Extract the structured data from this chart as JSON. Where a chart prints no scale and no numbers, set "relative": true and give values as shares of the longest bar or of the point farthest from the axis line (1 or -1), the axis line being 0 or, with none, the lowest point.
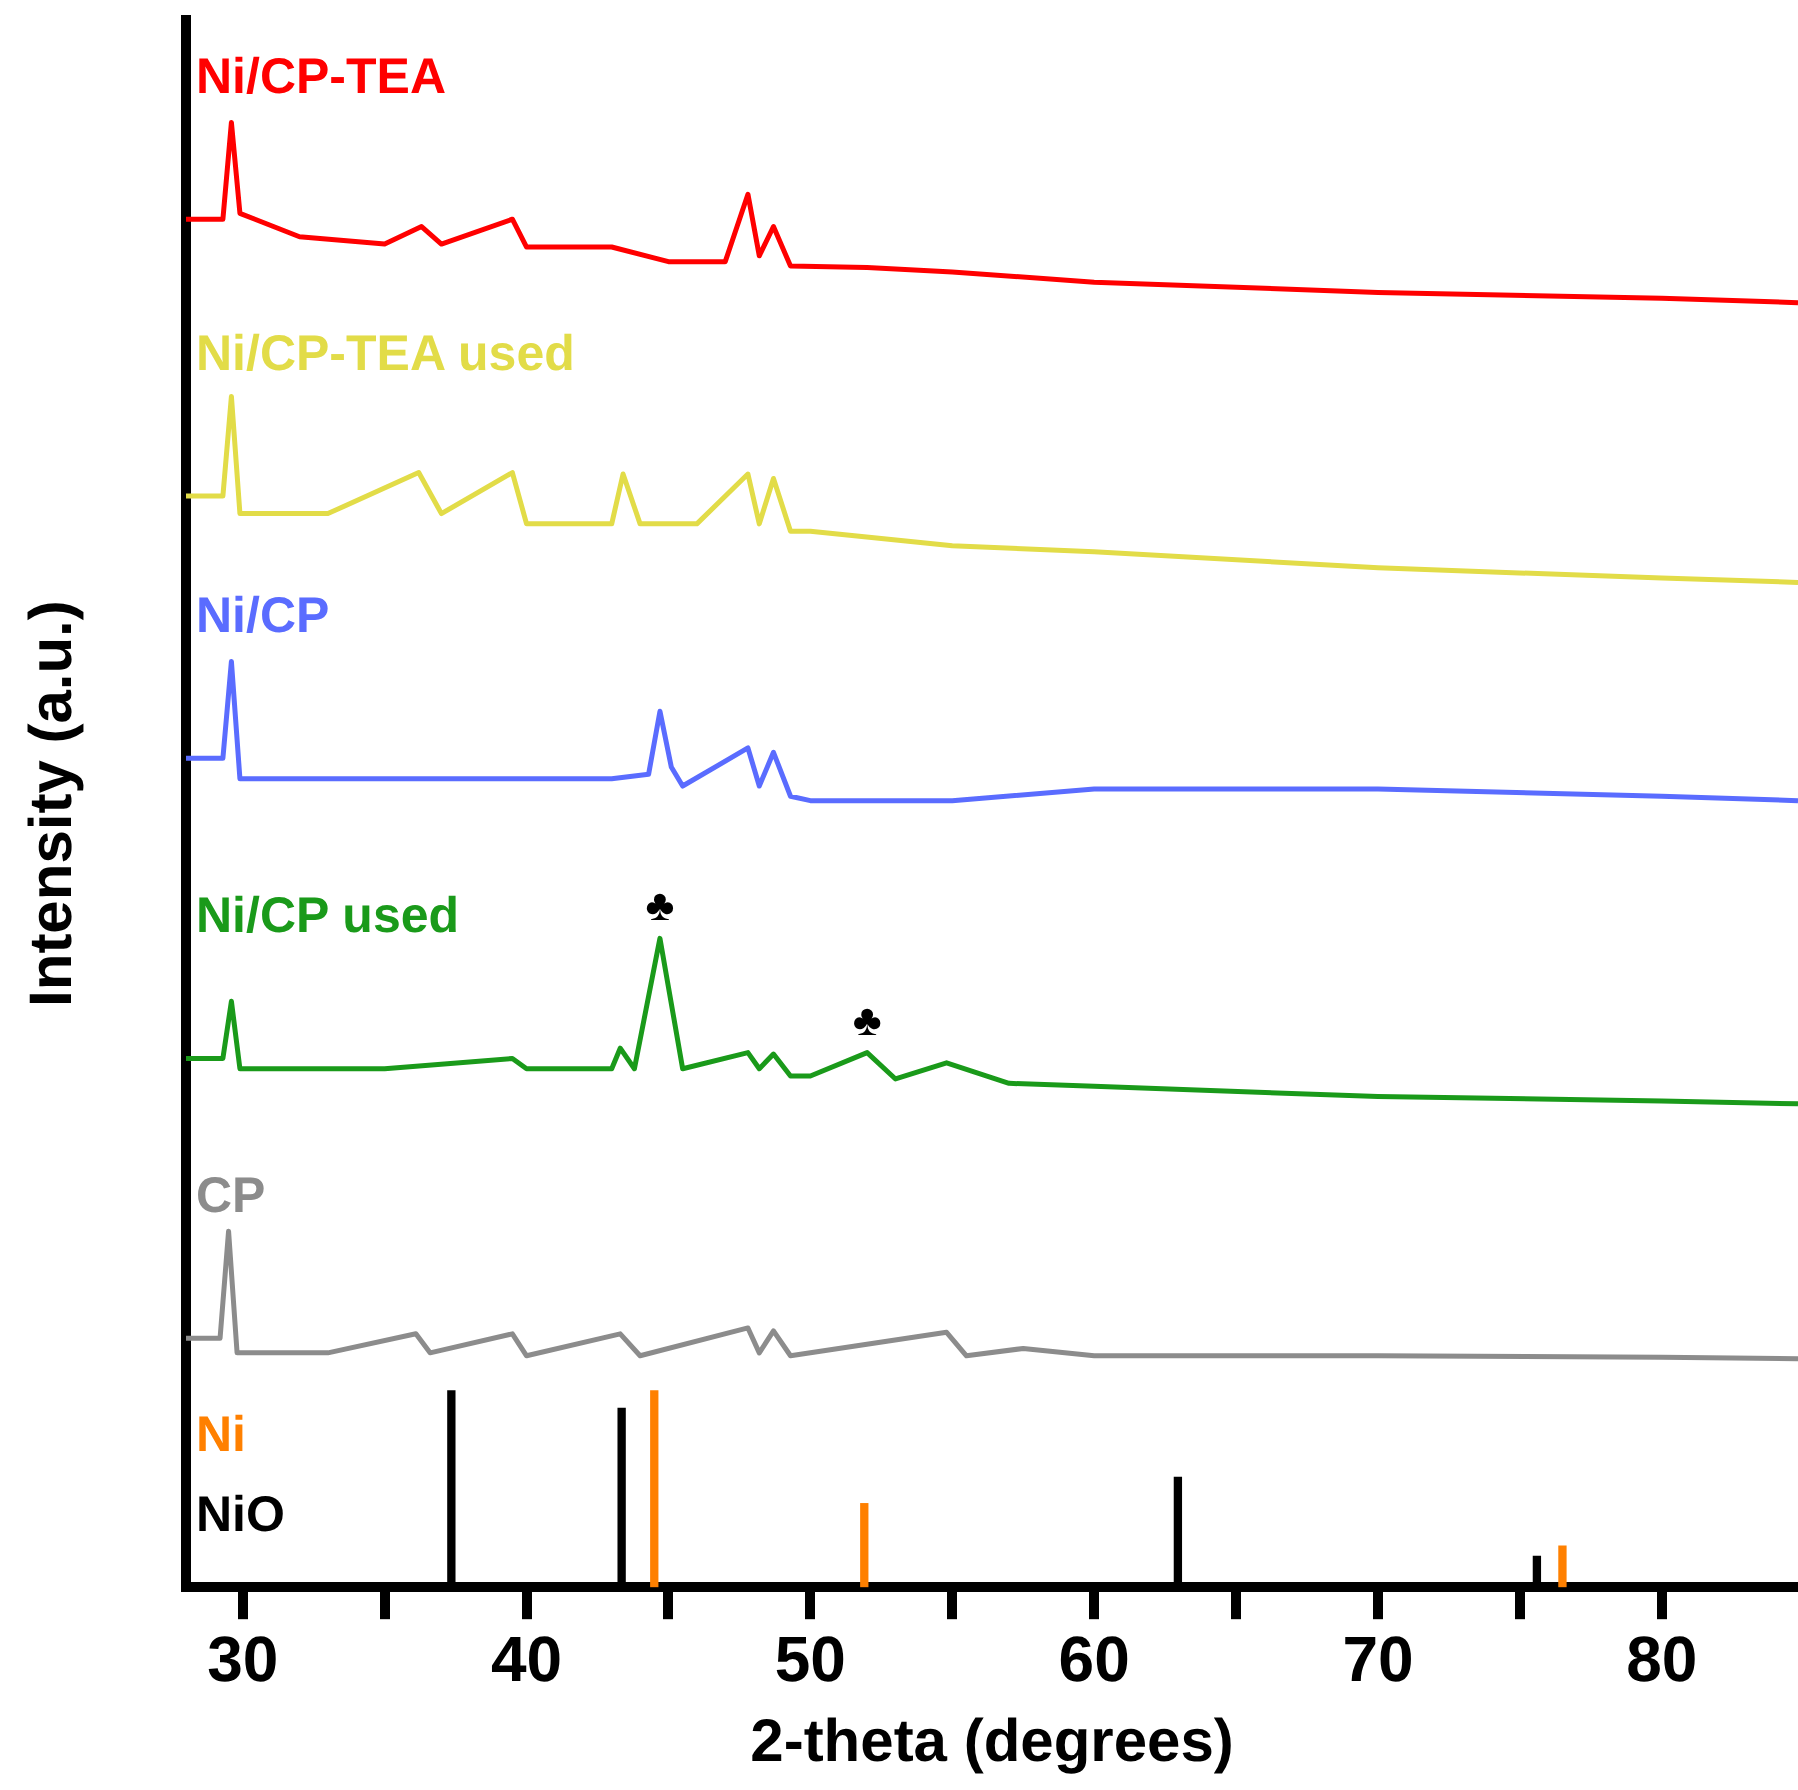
{
  "chart_data": {
    "type": "line",
    "relative": true,
    "xlabel": "2-theta (degrees)",
    "ylabel": "Intensity (a.u.)",
    "xlim": [
      28,
      84.8
    ],
    "xticks": [
      30,
      {
        "value": 35,
        "label": null
      },
      40,
      {
        "value": 45,
        "label": null
      },
      50,
      {
        "value": 55,
        "label": null
      },
      60,
      {
        "value": 65,
        "label": null
      },
      70,
      {
        "value": 75,
        "label": null
      },
      80
    ],
    "legend": false,
    "grid": false,
    "marker": "none",
    "series": [
      {
        "name": "Ni/CP-TEA",
        "color": "#ff0000",
        "x": [
          28,
          29.3,
          29.6,
          29.9,
          32,
          35,
          36.3,
          37,
          39.5,
          40,
          43,
          45,
          47,
          47.8,
          48.2,
          48.7,
          49.3,
          52,
          55,
          60,
          70,
          80,
          84.8
        ],
        "values": [
          0.934,
          0.934,
          1.0,
          0.938,
          0.922,
          0.917,
          0.929,
          0.917,
          0.934,
          0.915,
          0.915,
          0.905,
          0.905,
          0.951,
          0.909,
          0.929,
          0.902,
          0.901,
          0.898,
          0.891,
          0.884,
          0.88,
          0.877
        ]
      },
      {
        "name": "Ni/CP-TEA used",
        "color": "#e2dc48",
        "x": [
          28,
          29.3,
          29.6,
          29.9,
          33,
          36.2,
          37,
          39.5,
          40,
          43,
          43.4,
          44,
          46,
          47.8,
          48.2,
          48.7,
          49.3,
          50,
          55,
          60,
          70,
          80,
          84.8
        ],
        "values": [
          0.745,
          0.745,
          0.813,
          0.733,
          0.733,
          0.761,
          0.733,
          0.761,
          0.726,
          0.726,
          0.76,
          0.726,
          0.726,
          0.76,
          0.726,
          0.757,
          0.721,
          0.721,
          0.711,
          0.707,
          0.696,
          0.689,
          0.686
        ]
      },
      {
        "name": "Ni/CP",
        "color": "#5a6cff",
        "x": [
          28,
          29.3,
          29.6,
          29.9,
          35,
          43,
          44.3,
          44.7,
          45.1,
          45.5,
          47.8,
          48.2,
          48.7,
          49.3,
          50,
          55,
          60,
          70,
          80,
          84.8
        ],
        "values": [
          0.566,
          0.566,
          0.632,
          0.552,
          0.552,
          0.552,
          0.555,
          0.598,
          0.56,
          0.547,
          0.573,
          0.547,
          0.57,
          0.54,
          0.537,
          0.537,
          0.545,
          0.545,
          0.54,
          0.537
        ]
      },
      {
        "name": "Ni/CP used",
        "color": "#1a9a1a",
        "x": [
          28,
          29.3,
          29.6,
          29.9,
          35,
          39.5,
          40,
          43,
          43.3,
          43.8,
          44.7,
          45.5,
          47.8,
          48.2,
          48.7,
          49.3,
          50,
          52,
          53,
          54.8,
          57,
          60,
          70,
          80,
          84.8
        ],
        "values": [
          0.361,
          0.361,
          0.4,
          0.354,
          0.354,
          0.361,
          0.354,
          0.354,
          0.368,
          0.354,
          0.443,
          0.354,
          0.365,
          0.354,
          0.364,
          0.349,
          0.349,
          0.365,
          0.347,
          0.358,
          0.344,
          0.342,
          0.335,
          0.332,
          0.33
        ]
      },
      {
        "name": "CP",
        "color": "#8c8c8c",
        "x": [
          28,
          29.2,
          29.5,
          29.8,
          33,
          36.1,
          36.6,
          39.5,
          40,
          43.3,
          44,
          47.8,
          48.2,
          48.7,
          49.3,
          54.8,
          55.5,
          57.5,
          60,
          70,
          80,
          84.8
        ],
        "values": [
          0.17,
          0.17,
          0.243,
          0.16,
          0.16,
          0.173,
          0.16,
          0.173,
          0.158,
          0.173,
          0.158,
          0.177,
          0.16,
          0.175,
          0.158,
          0.174,
          0.158,
          0.163,
          0.158,
          0.158,
          0.157,
          0.156
        ]
      },
      {
        "name": "Ni",
        "type": "bar",
        "color": "#ff8000",
        "x": [
          44.5,
          51.9,
          76.5
        ],
        "values": [
          0.134,
          0.057,
          0.028
        ]
      },
      {
        "name": "NiO",
        "type": "bar",
        "color": "#000000",
        "x": [
          37.35,
          43.35,
          62.95,
          75.6
        ],
        "values": [
          0.134,
          0.122,
          0.075,
          0.021
        ]
      }
    ],
    "annotations": [
      {
        "text": "♣",
        "x": 44.7,
        "y": 0.443
      },
      {
        "text": "♣",
        "x": 52,
        "y": 0.365
      }
    ]
  }
}
